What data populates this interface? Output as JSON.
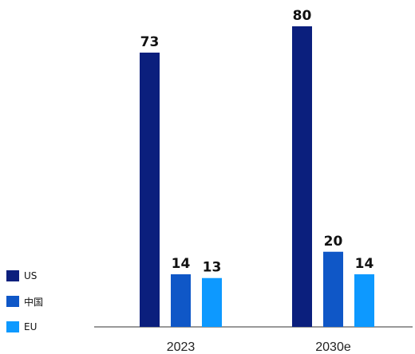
{
  "chart_data": {
    "type": "bar",
    "categories": [
      "2023",
      "2030e"
    ],
    "series": [
      {
        "name": "US",
        "values": [
          73,
          80
        ],
        "color": "#0b1f7d"
      },
      {
        "name": "中国",
        "values": [
          14,
          20
        ],
        "color": "#0f57c7"
      },
      {
        "name": "EU",
        "values": [
          13,
          14
        ],
        "color": "#0d99ff"
      }
    ],
    "ylim": [
      0,
      80
    ],
    "grid": false,
    "legend_position": "bottom-left",
    "title": "",
    "xlabel": "",
    "ylabel": ""
  }
}
